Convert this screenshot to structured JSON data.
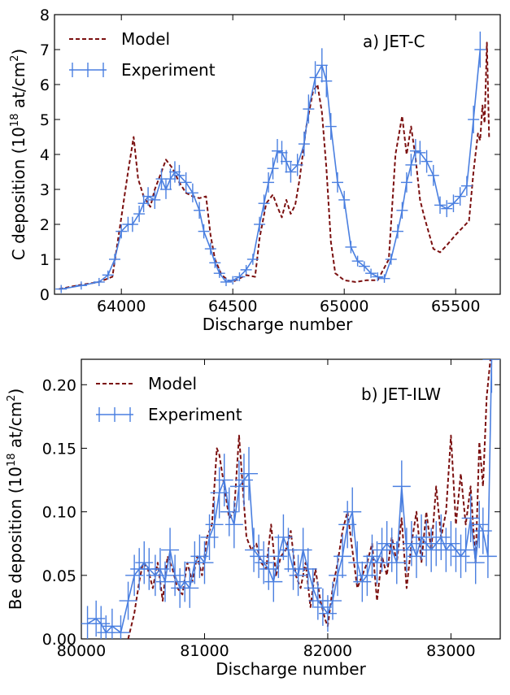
{
  "chart_data": [
    {
      "type": "line",
      "panel_label": "a) JET-C",
      "xlabel": "Discharge number",
      "ylabel_main": "C deposition (10",
      "ylabel_exp": "18",
      "ylabel_unit": " at/cm",
      "ylabel_unit_exp": "2",
      "ylabel_close": ")",
      "xlim": [
        63700,
        65700
      ],
      "ylim": [
        0,
        8
      ],
      "xticks": [
        64000,
        64500,
        65000,
        65500
      ],
      "xtick_labels": [
        "64000",
        "64500",
        "65000",
        "65500"
      ],
      "yticks": [
        0,
        1,
        2,
        3,
        4,
        5,
        6,
        7,
        8
      ],
      "ytick_labels": [
        "0",
        "1",
        "2",
        "3",
        "4",
        "5",
        "6",
        "7",
        "8"
      ],
      "grid": false,
      "legend_position": "top-left",
      "series": [
        {
          "name": "Model",
          "style": "dashed",
          "color": "#7b1010",
          "x": [
            63720,
            63800,
            63900,
            63960,
            64000,
            64030,
            64055,
            64075,
            64100,
            64130,
            64150,
            64180,
            64200,
            64230,
            64260,
            64290,
            64320,
            64350,
            64380,
            64400,
            64420,
            64450,
            64480,
            64500,
            64530,
            64560,
            64600,
            64620,
            64650,
            64680,
            64700,
            64720,
            64740,
            64760,
            64780,
            64800,
            64830,
            64860,
            64880,
            64900,
            64920,
            64940,
            64960,
            65000,
            65050,
            65100,
            65150,
            65200,
            65230,
            65260,
            65280,
            65300,
            65320,
            65340,
            65360,
            65400,
            65430,
            65460,
            65500,
            65530,
            65560,
            65580,
            65600,
            65610,
            65620,
            65630,
            65640,
            65650
          ],
          "y": [
            0.15,
            0.25,
            0.35,
            0.5,
            2.2,
            3.5,
            4.5,
            3.3,
            2.8,
            2.5,
            3.0,
            3.5,
            3.85,
            3.6,
            3.2,
            2.9,
            2.8,
            2.75,
            2.8,
            1.7,
            1.0,
            0.55,
            0.4,
            0.35,
            0.45,
            0.55,
            0.5,
            1.6,
            2.6,
            2.85,
            2.5,
            2.2,
            2.7,
            2.3,
            2.55,
            3.3,
            4.8,
            5.8,
            6.0,
            5.2,
            3.6,
            1.5,
            0.6,
            0.4,
            0.35,
            0.4,
            0.4,
            1.0,
            4.0,
            5.1,
            4.0,
            4.8,
            3.9,
            2.7,
            2.2,
            1.3,
            1.2,
            1.4,
            1.7,
            1.9,
            2.1,
            3.5,
            4.6,
            4.4,
            5.4,
            4.9,
            7.2,
            4.5
          ]
        },
        {
          "name": "Experiment",
          "style": "solid-errorbar",
          "color": "#4a7fe0",
          "x": [
            63730,
            63820,
            63900,
            63940,
            63970,
            64000,
            64030,
            64050,
            64080,
            64100,
            64120,
            64150,
            64180,
            64200,
            64220,
            64240,
            64260,
            64290,
            64320,
            64350,
            64370,
            64400,
            64420,
            64440,
            64470,
            64500,
            64530,
            64560,
            64590,
            64620,
            64640,
            64660,
            64680,
            64700,
            64720,
            64740,
            64760,
            64790,
            64820,
            64840,
            64870,
            64900,
            64920,
            64940,
            64970,
            65000,
            65030,
            65060,
            65090,
            65120,
            65150,
            65180,
            65210,
            65240,
            65260,
            65280,
            65300,
            65320,
            65340,
            65370,
            65400,
            65430,
            65460,
            65490,
            65520,
            65550,
            65580,
            65610
          ],
          "y": [
            0.15,
            0.25,
            0.35,
            0.55,
            1.0,
            1.8,
            2.0,
            2.0,
            2.3,
            2.6,
            2.8,
            2.7,
            3.3,
            3.0,
            3.3,
            3.5,
            3.4,
            3.2,
            2.9,
            2.4,
            1.8,
            1.3,
            0.9,
            0.6,
            0.35,
            0.4,
            0.5,
            0.7,
            1.0,
            2.0,
            2.6,
            3.2,
            3.6,
            4.1,
            4.05,
            3.8,
            3.5,
            3.7,
            4.3,
            5.3,
            6.2,
            6.55,
            6.1,
            4.8,
            3.2,
            2.7,
            1.35,
            0.95,
            0.8,
            0.6,
            0.5,
            0.45,
            1.0,
            1.8,
            2.4,
            3.2,
            3.7,
            4.1,
            4.05,
            3.8,
            3.4,
            2.55,
            2.45,
            2.6,
            2.8,
            3.1,
            5.0,
            7.0
          ]
        }
      ]
    },
    {
      "type": "line",
      "panel_label": "b) JET-ILW",
      "xlabel": "Discharge number",
      "ylabel_main": "Be deposition (10",
      "ylabel_exp": "18",
      "ylabel_unit": " at/cm",
      "ylabel_unit_exp": "2",
      "ylabel_close": ")",
      "xlim": [
        80000,
        83400
      ],
      "ylim": [
        0,
        0.22
      ],
      "xticks": [
        80000,
        81000,
        82000,
        83000
      ],
      "xtick_labels": [
        "80000",
        "81000",
        "82000",
        "83000"
      ],
      "yticks": [
        0,
        0.05,
        0.1,
        0.15,
        0.2
      ],
      "ytick_labels": [
        "0.00",
        "0.05",
        "0.10",
        "0.15",
        "0.20"
      ],
      "grid": false,
      "legend_position": "top-left",
      "series": [
        {
          "name": "Model",
          "style": "dashed",
          "color": "#7b1010",
          "x": [
            80380,
            80430,
            80470,
            80500,
            80540,
            80580,
            80620,
            80660,
            80700,
            80740,
            80780,
            80820,
            80860,
            80900,
            80940,
            80980,
            81020,
            81060,
            81100,
            81120,
            81160,
            81200,
            81240,
            81280,
            81310,
            81340,
            81380,
            81420,
            81460,
            81500,
            81540,
            81580,
            81620,
            81660,
            81700,
            81740,
            81780,
            81820,
            81860,
            81900,
            81940,
            81980,
            82000,
            82040,
            82080,
            82120,
            82160,
            82200,
            82240,
            82280,
            82320,
            82360,
            82400,
            82440,
            82480,
            82520,
            82560,
            82600,
            82640,
            82680,
            82720,
            82760,
            82800,
            82840,
            82880,
            82920,
            82960,
            83000,
            83040,
            83080,
            83120,
            83160,
            83200,
            83230,
            83260,
            83290,
            83320
          ],
          "y": [
            0.0,
            0.02,
            0.045,
            0.06,
            0.055,
            0.04,
            0.06,
            0.03,
            0.065,
            0.055,
            0.04,
            0.035,
            0.06,
            0.045,
            0.065,
            0.05,
            0.08,
            0.09,
            0.15,
            0.145,
            0.12,
            0.095,
            0.1,
            0.16,
            0.12,
            0.08,
            0.07,
            0.075,
            0.06,
            0.055,
            0.09,
            0.05,
            0.065,
            0.07,
            0.085,
            0.05,
            0.04,
            0.06,
            0.025,
            0.055,
            0.03,
            0.015,
            0.01,
            0.04,
            0.06,
            0.085,
            0.1,
            0.07,
            0.04,
            0.05,
            0.06,
            0.075,
            0.03,
            0.065,
            0.05,
            0.08,
            0.06,
            0.095,
            0.04,
            0.075,
            0.1,
            0.06,
            0.1,
            0.07,
            0.12,
            0.08,
            0.1,
            0.16,
            0.09,
            0.13,
            0.09,
            0.12,
            0.06,
            0.155,
            0.12,
            0.19,
            0.22
          ]
        },
        {
          "name": "Experiment",
          "style": "solid-errorbar",
          "color": "#4a7fe0",
          "x": [
            80050,
            80120,
            80160,
            80200,
            80250,
            80320,
            80380,
            80430,
            80470,
            80510,
            80550,
            80600,
            80640,
            80680,
            80720,
            80760,
            80800,
            80840,
            80880,
            80920,
            80960,
            81000,
            81040,
            81080,
            81120,
            81160,
            81200,
            81240,
            81280,
            81320,
            81360,
            81400,
            81440,
            81480,
            81520,
            81560,
            81600,
            81640,
            81680,
            81720,
            81760,
            81800,
            81840,
            81880,
            81920,
            81960,
            82000,
            82040,
            82080,
            82120,
            82160,
            82200,
            82240,
            82280,
            82320,
            82360,
            82400,
            82440,
            82480,
            82520,
            82560,
            82600,
            82640,
            82680,
            82720,
            82760,
            82800,
            82840,
            82880,
            82920,
            82960,
            83000,
            83040,
            83080,
            83120,
            83160,
            83200,
            83230,
            83260,
            83300,
            83330
          ],
          "y": [
            0.012,
            0.016,
            0.012,
            0.005,
            0.01,
            0.005,
            0.03,
            0.05,
            0.055,
            0.06,
            0.055,
            0.05,
            0.055,
            0.045,
            0.07,
            0.05,
            0.04,
            0.045,
            0.04,
            0.06,
            0.065,
            0.06,
            0.08,
            0.09,
            0.115,
            0.125,
            0.1,
            0.09,
            0.12,
            0.125,
            0.13,
            0.07,
            0.065,
            0.06,
            0.055,
            0.045,
            0.065,
            0.08,
            0.07,
            0.055,
            0.05,
            0.07,
            0.055,
            0.04,
            0.03,
            0.025,
            0.02,
            0.03,
            0.05,
            0.065,
            0.09,
            0.1,
            0.06,
            0.045,
            0.05,
            0.065,
            0.06,
            0.07,
            0.075,
            0.07,
            0.06,
            0.12,
            0.07,
            0.075,
            0.065,
            0.08,
            0.075,
            0.07,
            0.075,
            0.08,
            0.07,
            0.075,
            0.07,
            0.065,
            0.07,
            0.095,
            0.06,
            0.09,
            0.085,
            0.065,
            0.22
          ]
        }
      ]
    }
  ]
}
